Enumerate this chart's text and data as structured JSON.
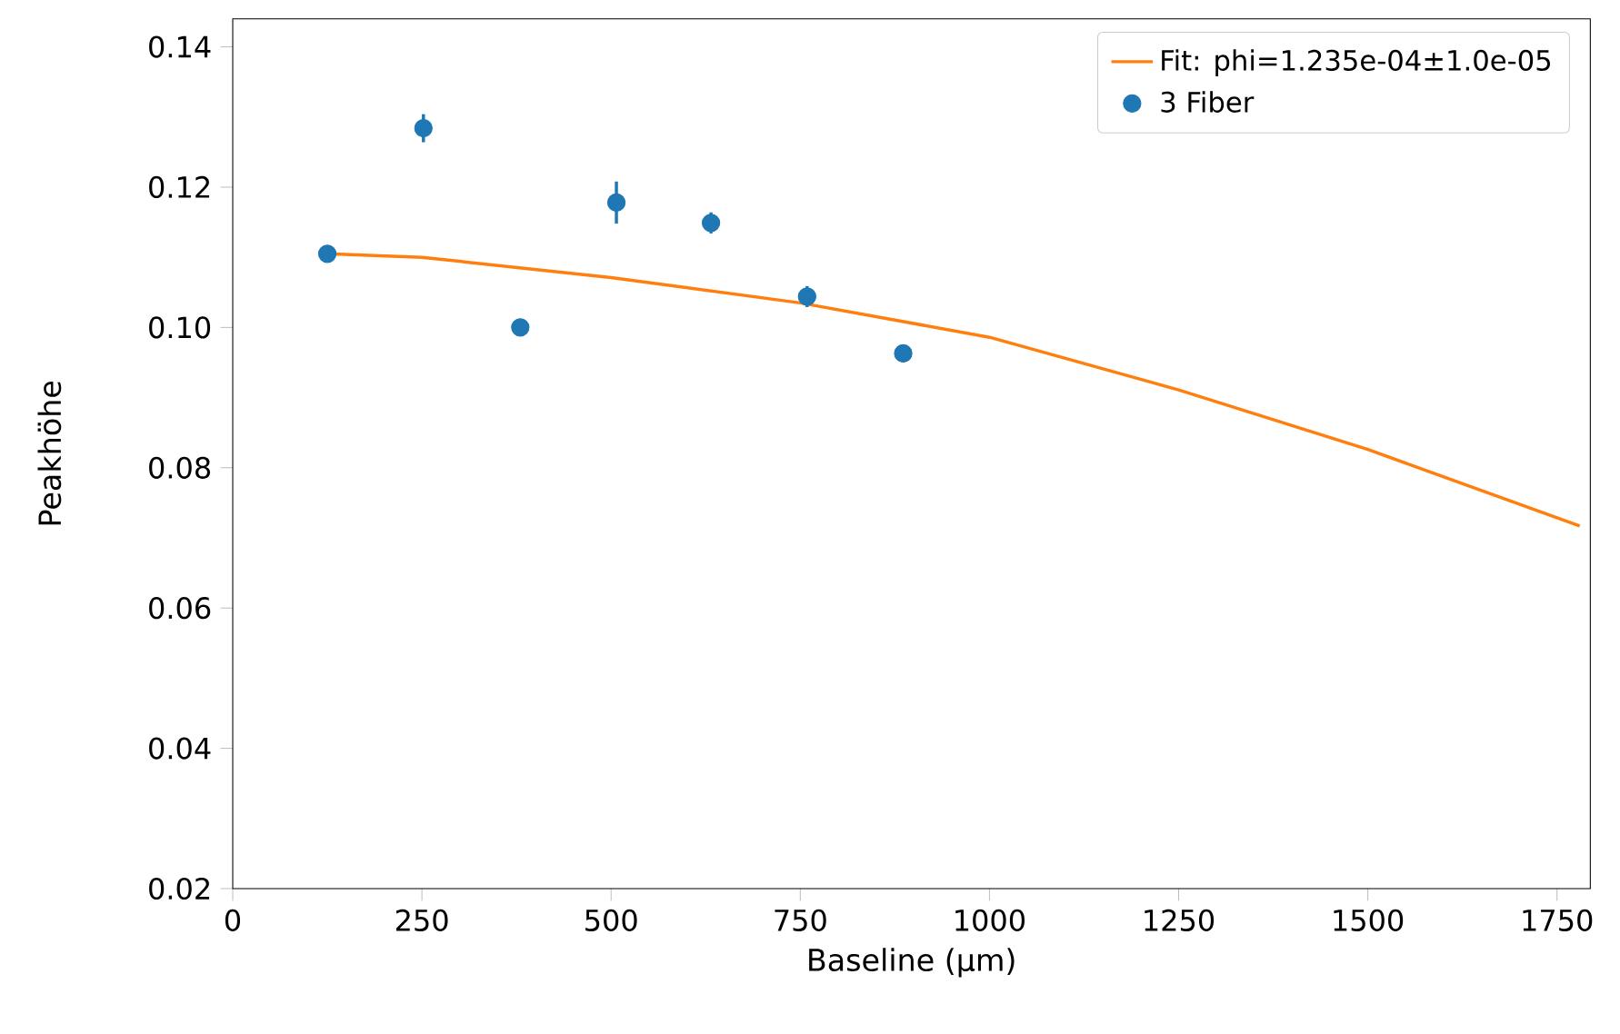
{
  "chart_data": {
    "type": "scatter",
    "xlabel": "Baseline (µm)",
    "ylabel": "Peakhöhe",
    "xlim": [
      0,
      1794
    ],
    "ylim": [
      0.02,
      0.144
    ],
    "xticks": [
      0,
      250,
      500,
      750,
      1000,
      1250,
      1500,
      1750
    ],
    "yticks": [
      0.02,
      0.04,
      0.06,
      0.08,
      {
        "value": 0.1,
        "label": "0.10"
      },
      0.12,
      0.14
    ],
    "legend": "top right",
    "series": [
      {
        "name": "Fit: phi=1.235e-04±1.0e-05",
        "type": "line",
        "marker": "none",
        "color": "#ff7f0e",
        "x": [
          125,
          250,
          500,
          750,
          1000,
          1250,
          1500,
          1780
        ],
        "values": [
          0.1105,
          0.11,
          0.1071,
          0.1035,
          0.0986,
          0.0911,
          0.0826,
          0.0717
        ]
      },
      {
        "name": "3 Fiber",
        "marker": "circle",
        "color": "#1f77b4",
        "x": [
          125,
          252,
          380,
          507,
          632,
          759,
          886
        ],
        "values": [
          0.1105,
          0.1284,
          0.1,
          0.1178,
          0.1149,
          0.1044,
          0.0963
        ],
        "errors": [
          0.001,
          0.002,
          0.001,
          0.003,
          0.0015,
          0.0015,
          0.001
        ]
      }
    ]
  }
}
